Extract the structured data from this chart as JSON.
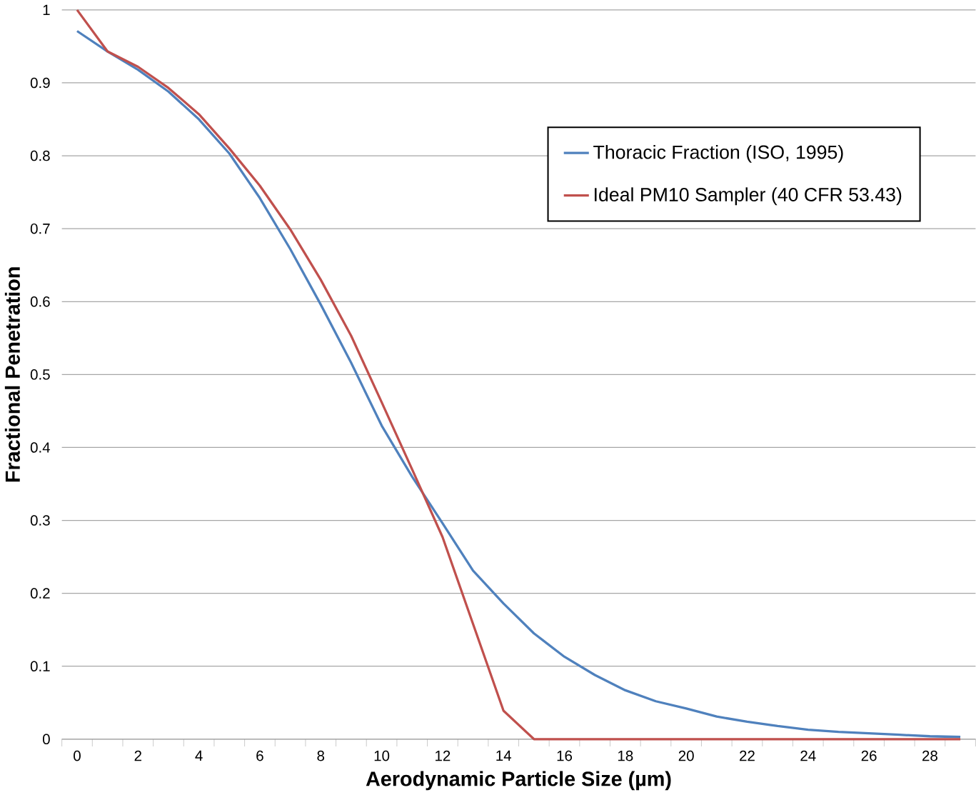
{
  "chart_data": {
    "type": "line",
    "xlabel": "Aerodynamic Particle Size (µm)",
    "ylabel": "Fractional Penetration",
    "categories": [
      "0",
      null,
      "2",
      null,
      "4",
      null,
      "6",
      null,
      "8",
      null,
      "10",
      null,
      "12",
      null,
      "14",
      null,
      "16",
      null,
      "18",
      null,
      "20",
      null,
      "22",
      null,
      "24",
      null,
      "26",
      null,
      "28",
      null
    ],
    "series": [
      {
        "name": "Thoracic Fraction (ISO, 1995)",
        "color": "#4f81bd",
        "values": [
          0.971,
          0.943,
          0.918,
          0.888,
          0.85,
          0.803,
          0.742,
          0.672,
          0.596,
          0.516,
          0.43,
          0.36,
          0.296,
          0.231,
          0.186,
          0.145,
          0.113,
          0.088,
          0.067,
          0.052,
          0.042,
          0.031,
          0.024,
          0.018,
          0.013,
          0.01,
          0.008,
          0.006,
          0.004,
          0.003
        ]
      },
      {
        "name": "Ideal PM10 Sampler (40 CFR 53.43)",
        "color": "#c0504d",
        "values": [
          1.0,
          0.943,
          0.922,
          0.893,
          0.857,
          0.81,
          0.759,
          0.699,
          0.63,
          0.553,
          0.462,
          0.37,
          0.277,
          0.158,
          0.039,
          0,
          0,
          0,
          0,
          0,
          0,
          0,
          0,
          0,
          0,
          0,
          0,
          0,
          0,
          0
        ]
      }
    ],
    "ylim": [
      0,
      1
    ],
    "yticks": [
      0,
      0.1,
      0.2,
      0.3,
      0.4,
      0.5,
      0.6,
      0.7,
      0.8,
      0.9,
      1
    ],
    "grid": "y",
    "legend": "top right",
    "marker": "none",
    "line_style": "solid"
  }
}
